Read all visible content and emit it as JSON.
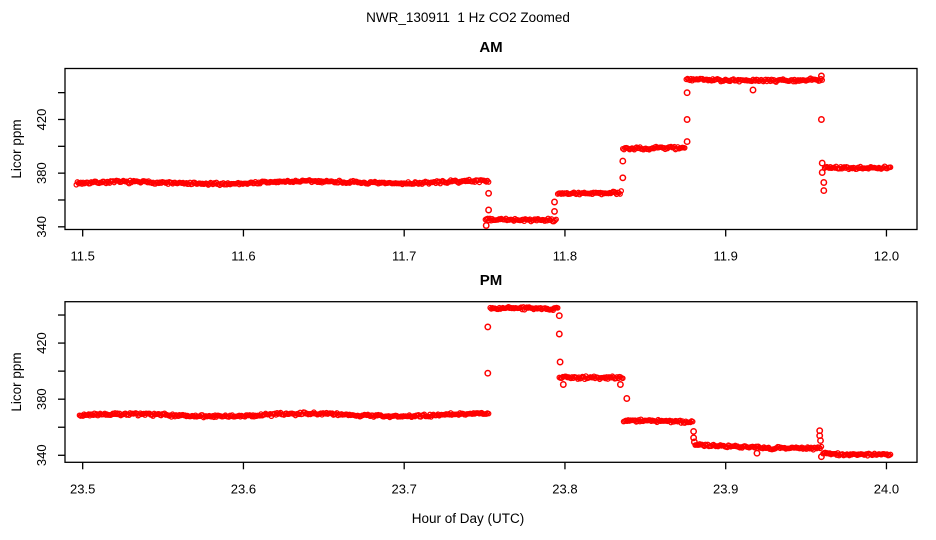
{
  "title": "NWR_130911  1 Hz CO2 Zoomed",
  "xlabel": "Hour of Day (UTC)",
  "chart_data": [
    {
      "type": "scatter",
      "title": "AM",
      "ylabel": "Licor ppm",
      "marker": "open-circle",
      "color": "#FF0000",
      "xlim": [
        11.489,
        12.019
      ],
      "ylim": [
        338,
        458
      ],
      "xtick_labels": [
        "11.5",
        "11.6",
        "11.7",
        "11.8",
        "11.9",
        "12.0"
      ],
      "xtick_values": [
        11.5,
        11.6,
        11.7,
        11.8,
        11.9,
        12.0
      ],
      "ytick_labels": [
        "340",
        "380",
        "420"
      ],
      "ytick_label_values": [
        340,
        380,
        420
      ],
      "ytick_minor_values": [
        360,
        400,
        440
      ],
      "segments": [
        {
          "x_start": 11.496,
          "x_end": 11.7525,
          "ppm_start": 372.5,
          "ppm_end": 373.5,
          "wave": 0.9
        },
        {
          "x_start": 11.7505,
          "x_end": 11.7945,
          "ppm_start": 345.0,
          "ppm_end": 345.5,
          "wave": 0.5
        },
        {
          "x_start": 11.7955,
          "x_end": 11.835,
          "ppm_start": 365.5,
          "ppm_end": 365.5,
          "wave": 0.5
        },
        {
          "x_start": 11.836,
          "x_end": 11.8745,
          "ppm_start": 398.0,
          "ppm_end": 398.5,
          "wave": 0.5
        },
        {
          "x_start": 11.8755,
          "x_end": 11.96,
          "ppm_start": 449.5,
          "ppm_end": 449.5,
          "wave": 0.5
        },
        {
          "x_start": 11.9615,
          "x_end": 12.0025,
          "ppm_start": 384.5,
          "ppm_end": 384.0,
          "wave": 0.4
        }
      ],
      "outliers": [
        [
          11.7525,
          365
        ],
        [
          11.7525,
          352.5
        ],
        [
          11.751,
          341
        ],
        [
          11.7935,
          358.5
        ],
        [
          11.7935,
          351.5
        ],
        [
          11.836,
          389
        ],
        [
          11.836,
          376.5
        ],
        [
          11.876,
          440
        ],
        [
          11.876,
          420
        ],
        [
          11.876,
          403.5
        ],
        [
          11.917,
          442
        ],
        [
          11.9595,
          452.5
        ],
        [
          11.9595,
          420
        ],
        [
          11.96,
          387.5
        ],
        [
          11.96,
          380.5
        ],
        [
          11.961,
          373
        ],
        [
          11.961,
          367
        ]
      ]
    },
    {
      "type": "scatter",
      "title": "PM",
      "ylabel": "Licor ppm",
      "marker": "open-circle",
      "color": "#FF0000",
      "xlim": [
        23.489,
        24.019
      ],
      "ylim": [
        335,
        449.5
      ],
      "xtick_labels": [
        "23.5",
        "23.6",
        "23.7",
        "23.8",
        "23.9",
        "24.0"
      ],
      "xtick_values": [
        23.5,
        23.6,
        23.7,
        23.8,
        23.9,
        24.0
      ],
      "ytick_labels": [
        "340",
        "380",
        "420"
      ],
      "ytick_label_values": [
        340,
        380,
        420
      ],
      "ytick_minor_values": [
        360,
        400,
        440
      ],
      "segments": [
        {
          "x_start": 23.498,
          "x_end": 23.7525,
          "ppm_start": 368.5,
          "ppm_end": 369.0,
          "wave": 0.9
        },
        {
          "x_start": 23.7535,
          "x_end": 23.7955,
          "ppm_start": 444.5,
          "ppm_end": 445.0,
          "wave": 0.5
        },
        {
          "x_start": 23.7965,
          "x_end": 23.836,
          "ppm_start": 396.0,
          "ppm_end": 395.5,
          "wave": 0.5
        },
        {
          "x_start": 23.8365,
          "x_end": 23.8795,
          "ppm_start": 365.0,
          "ppm_end": 363.5,
          "wave": 0.5
        },
        {
          "x_start": 23.881,
          "x_end": 23.9595,
          "ppm_start": 347.0,
          "ppm_end": 345.0,
          "wave": 0.5
        },
        {
          "x_start": 23.9605,
          "x_end": 24.0025,
          "ppm_start": 341.5,
          "ppm_end": 340.5,
          "wave": 0.4
        }
      ],
      "outliers": [
        [
          23.752,
          431.5
        ],
        [
          23.752,
          398.5
        ],
        [
          23.7965,
          439.5
        ],
        [
          23.7965,
          426.5
        ],
        [
          23.797,
          406.5
        ],
        [
          23.799,
          390.5
        ],
        [
          23.8345,
          390.5
        ],
        [
          23.8385,
          380.5
        ],
        [
          23.88,
          357
        ],
        [
          23.88,
          352.5
        ],
        [
          23.8805,
          349.5
        ],
        [
          23.9195,
          341.5
        ],
        [
          23.9585,
          357.5
        ],
        [
          23.9585,
          354
        ],
        [
          23.959,
          350.5
        ],
        [
          23.9595,
          339
        ]
      ]
    }
  ]
}
